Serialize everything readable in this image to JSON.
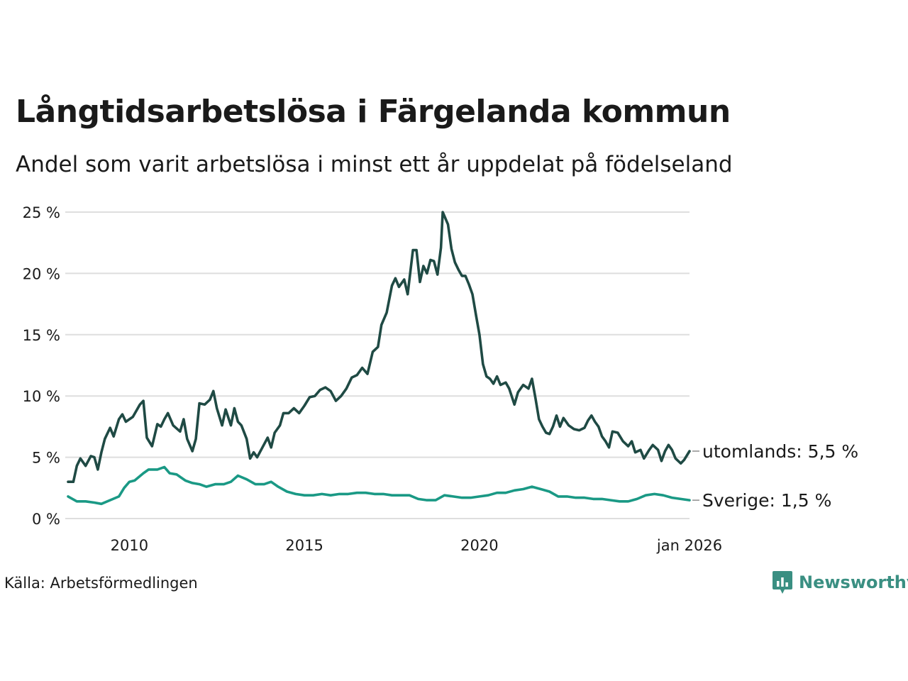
{
  "chart_data": {
    "type": "line",
    "title": "Långtidsarbetslösa i Färgelanda kommun",
    "subtitle": "Andel som varit arbetslösa i minst ett år uppdelat på födelseland",
    "y_ticks": [
      "25 %",
      "20 %",
      "15 %",
      "10 %",
      "5 %",
      "0 %"
    ],
    "y_tick_values": [
      25,
      20,
      15,
      10,
      5,
      0
    ],
    "ylim": [
      0,
      25
    ],
    "x_range": [
      2008.25,
      2026.0
    ],
    "x_ticks": [
      "2010",
      "2015",
      "2020",
      "jan 2026"
    ],
    "x_tick_values": [
      2010,
      2015,
      2020,
      2026
    ],
    "grid": true,
    "source": "Källa: Arbetsförmedlingen",
    "brand": "Newsworthy",
    "series": [
      {
        "name": "utomlands",
        "label": "utomlands: 5,5 %",
        "color": "#1f4a44",
        "points": [
          [
            2008.25,
            3.0
          ],
          [
            2008.4,
            3.0
          ],
          [
            2008.5,
            4.3
          ],
          [
            2008.6,
            4.9
          ],
          [
            2008.75,
            4.3
          ],
          [
            2008.9,
            5.1
          ],
          [
            2009.0,
            5.0
          ],
          [
            2009.1,
            4.0
          ],
          [
            2009.2,
            5.4
          ],
          [
            2009.3,
            6.5
          ],
          [
            2009.45,
            7.4
          ],
          [
            2009.55,
            6.7
          ],
          [
            2009.7,
            8.1
          ],
          [
            2009.8,
            8.5
          ],
          [
            2009.9,
            7.9
          ],
          [
            2010.1,
            8.3
          ],
          [
            2010.3,
            9.3
          ],
          [
            2010.4,
            9.6
          ],
          [
            2010.5,
            6.6
          ],
          [
            2010.65,
            5.9
          ],
          [
            2010.8,
            7.7
          ],
          [
            2010.9,
            7.5
          ],
          [
            2011.0,
            8.1
          ],
          [
            2011.1,
            8.6
          ],
          [
            2011.25,
            7.6
          ],
          [
            2011.45,
            7.1
          ],
          [
            2011.55,
            8.1
          ],
          [
            2011.65,
            6.5
          ],
          [
            2011.8,
            5.5
          ],
          [
            2011.9,
            6.5
          ],
          [
            2012.0,
            9.4
          ],
          [
            2012.15,
            9.3
          ],
          [
            2012.3,
            9.7
          ],
          [
            2012.4,
            10.4
          ],
          [
            2012.5,
            9.0
          ],
          [
            2012.65,
            7.6
          ],
          [
            2012.75,
            8.9
          ],
          [
            2012.9,
            7.6
          ],
          [
            2013.0,
            9.0
          ],
          [
            2013.1,
            7.9
          ],
          [
            2013.2,
            7.6
          ],
          [
            2013.35,
            6.5
          ],
          [
            2013.45,
            4.9
          ],
          [
            2013.55,
            5.4
          ],
          [
            2013.65,
            5.0
          ],
          [
            2013.8,
            5.8
          ],
          [
            2013.95,
            6.6
          ],
          [
            2014.05,
            5.8
          ],
          [
            2014.15,
            7.0
          ],
          [
            2014.3,
            7.6
          ],
          [
            2014.4,
            8.6
          ],
          [
            2014.55,
            8.6
          ],
          [
            2014.7,
            9.0
          ],
          [
            2014.85,
            8.6
          ],
          [
            2015.0,
            9.2
          ],
          [
            2015.15,
            9.9
          ],
          [
            2015.3,
            10.0
          ],
          [
            2015.45,
            10.5
          ],
          [
            2015.6,
            10.7
          ],
          [
            2015.75,
            10.4
          ],
          [
            2015.9,
            9.6
          ],
          [
            2016.05,
            10.0
          ],
          [
            2016.2,
            10.6
          ],
          [
            2016.35,
            11.5
          ],
          [
            2016.5,
            11.7
          ],
          [
            2016.65,
            12.3
          ],
          [
            2016.8,
            11.8
          ],
          [
            2016.95,
            13.6
          ],
          [
            2017.1,
            14.0
          ],
          [
            2017.2,
            15.8
          ],
          [
            2017.35,
            16.8
          ],
          [
            2017.5,
            19.0
          ],
          [
            2017.6,
            19.6
          ],
          [
            2017.7,
            18.9
          ],
          [
            2017.85,
            19.5
          ],
          [
            2017.95,
            18.3
          ],
          [
            2018.1,
            21.9
          ],
          [
            2018.2,
            21.9
          ],
          [
            2018.3,
            19.3
          ],
          [
            2018.4,
            20.6
          ],
          [
            2018.5,
            20.0
          ],
          [
            2018.6,
            21.1
          ],
          [
            2018.7,
            21.0
          ],
          [
            2018.8,
            19.9
          ],
          [
            2018.9,
            22.1
          ],
          [
            2018.95,
            25.0
          ],
          [
            2019.1,
            24.0
          ],
          [
            2019.2,
            22.0
          ],
          [
            2019.3,
            20.9
          ],
          [
            2019.4,
            20.3
          ],
          [
            2019.5,
            19.8
          ],
          [
            2019.6,
            19.8
          ],
          [
            2019.7,
            19.1
          ],
          [
            2019.8,
            18.3
          ],
          [
            2019.9,
            16.6
          ],
          [
            2020.0,
            15.0
          ],
          [
            2020.1,
            12.6
          ],
          [
            2020.2,
            11.6
          ],
          [
            2020.3,
            11.4
          ],
          [
            2020.4,
            11.0
          ],
          [
            2020.5,
            11.6
          ],
          [
            2020.6,
            10.9
          ],
          [
            2020.75,
            11.1
          ],
          [
            2020.85,
            10.6
          ],
          [
            2021.0,
            9.3
          ],
          [
            2021.1,
            10.3
          ],
          [
            2021.25,
            10.9
          ],
          [
            2021.4,
            10.6
          ],
          [
            2021.5,
            11.4
          ],
          [
            2021.6,
            9.8
          ],
          [
            2021.7,
            8.1
          ],
          [
            2021.8,
            7.5
          ],
          [
            2021.9,
            7.0
          ],
          [
            2022.0,
            6.9
          ],
          [
            2022.1,
            7.5
          ],
          [
            2022.2,
            8.4
          ],
          [
            2022.3,
            7.5
          ],
          [
            2022.4,
            8.2
          ],
          [
            2022.55,
            7.6
          ],
          [
            2022.7,
            7.3
          ],
          [
            2022.85,
            7.2
          ],
          [
            2023.0,
            7.4
          ],
          [
            2023.1,
            8.0
          ],
          [
            2023.2,
            8.4
          ],
          [
            2023.3,
            7.9
          ],
          [
            2023.4,
            7.5
          ],
          [
            2023.5,
            6.7
          ],
          [
            2023.6,
            6.3
          ],
          [
            2023.7,
            5.8
          ],
          [
            2023.8,
            7.1
          ],
          [
            2023.95,
            7.0
          ],
          [
            2024.1,
            6.3
          ],
          [
            2024.25,
            5.9
          ],
          [
            2024.35,
            6.3
          ],
          [
            2024.45,
            5.4
          ],
          [
            2024.6,
            5.6
          ],
          [
            2024.7,
            4.9
          ],
          [
            2024.85,
            5.6
          ],
          [
            2024.95,
            6.0
          ],
          [
            2025.1,
            5.6
          ],
          [
            2025.2,
            4.7
          ],
          [
            2025.3,
            5.5
          ],
          [
            2025.4,
            6.0
          ],
          [
            2025.5,
            5.6
          ],
          [
            2025.6,
            4.9
          ],
          [
            2025.75,
            4.5
          ],
          [
            2025.85,
            4.8
          ],
          [
            2026.0,
            5.5
          ]
        ]
      },
      {
        "name": "Sverige",
        "label": "Sverige: 1,5 %",
        "color": "#1a9985",
        "points": [
          [
            2008.25,
            1.8
          ],
          [
            2008.5,
            1.4
          ],
          [
            2008.75,
            1.4
          ],
          [
            2009.0,
            1.3
          ],
          [
            2009.2,
            1.2
          ],
          [
            2009.45,
            1.5
          ],
          [
            2009.7,
            1.8
          ],
          [
            2009.85,
            2.5
          ],
          [
            2010.0,
            3.0
          ],
          [
            2010.15,
            3.1
          ],
          [
            2010.4,
            3.7
          ],
          [
            2010.55,
            4.0
          ],
          [
            2010.8,
            4.0
          ],
          [
            2011.0,
            4.2
          ],
          [
            2011.15,
            3.7
          ],
          [
            2011.35,
            3.6
          ],
          [
            2011.6,
            3.1
          ],
          [
            2011.8,
            2.9
          ],
          [
            2012.0,
            2.8
          ],
          [
            2012.2,
            2.6
          ],
          [
            2012.45,
            2.8
          ],
          [
            2012.7,
            2.8
          ],
          [
            2012.9,
            3.0
          ],
          [
            2013.1,
            3.5
          ],
          [
            2013.35,
            3.2
          ],
          [
            2013.6,
            2.8
          ],
          [
            2013.85,
            2.8
          ],
          [
            2014.05,
            3.0
          ],
          [
            2014.25,
            2.6
          ],
          [
            2014.5,
            2.2
          ],
          [
            2014.75,
            2.0
          ],
          [
            2015.0,
            1.9
          ],
          [
            2015.25,
            1.9
          ],
          [
            2015.5,
            2.0
          ],
          [
            2015.75,
            1.9
          ],
          [
            2016.0,
            2.0
          ],
          [
            2016.25,
            2.0
          ],
          [
            2016.5,
            2.1
          ],
          [
            2016.75,
            2.1
          ],
          [
            2017.0,
            2.0
          ],
          [
            2017.25,
            2.0
          ],
          [
            2017.5,
            1.9
          ],
          [
            2017.75,
            1.9
          ],
          [
            2018.0,
            1.9
          ],
          [
            2018.25,
            1.6
          ],
          [
            2018.5,
            1.5
          ],
          [
            2018.75,
            1.5
          ],
          [
            2019.0,
            1.9
          ],
          [
            2019.25,
            1.8
          ],
          [
            2019.5,
            1.7
          ],
          [
            2019.75,
            1.7
          ],
          [
            2020.0,
            1.8
          ],
          [
            2020.25,
            1.9
          ],
          [
            2020.5,
            2.1
          ],
          [
            2020.75,
            2.1
          ],
          [
            2021.0,
            2.3
          ],
          [
            2021.25,
            2.4
          ],
          [
            2021.5,
            2.6
          ],
          [
            2021.75,
            2.4
          ],
          [
            2022.0,
            2.2
          ],
          [
            2022.25,
            1.8
          ],
          [
            2022.5,
            1.8
          ],
          [
            2022.75,
            1.7
          ],
          [
            2023.0,
            1.7
          ],
          [
            2023.25,
            1.6
          ],
          [
            2023.5,
            1.6
          ],
          [
            2023.75,
            1.5
          ],
          [
            2024.0,
            1.4
          ],
          [
            2024.25,
            1.4
          ],
          [
            2024.5,
            1.6
          ],
          [
            2024.75,
            1.9
          ],
          [
            2025.0,
            2.0
          ],
          [
            2025.25,
            1.9
          ],
          [
            2025.5,
            1.7
          ],
          [
            2025.75,
            1.6
          ],
          [
            2026.0,
            1.5
          ]
        ]
      }
    ]
  }
}
